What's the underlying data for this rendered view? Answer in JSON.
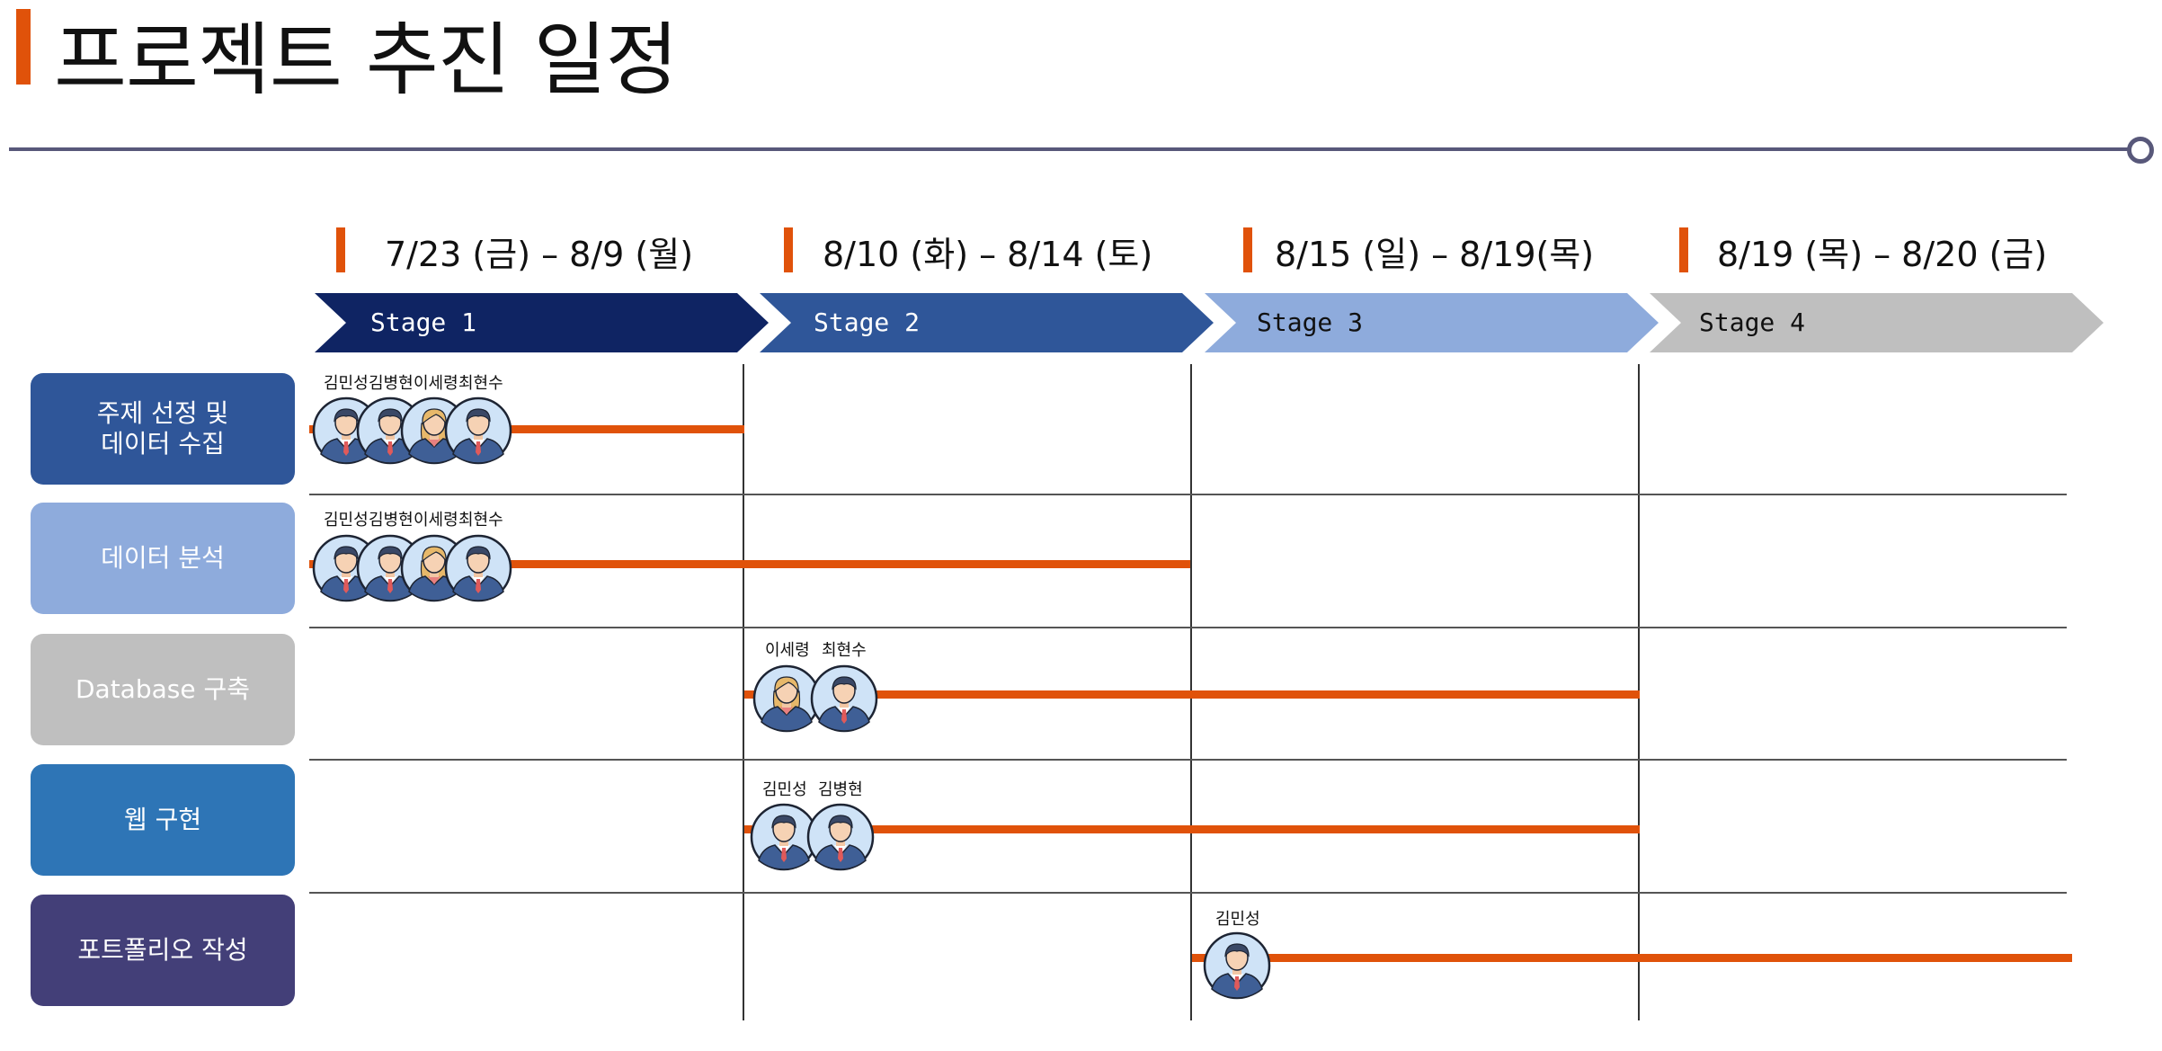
{
  "title": "프로젝트 추진 일정",
  "colors": {
    "accent": "#e0520a",
    "rule": "#58587a",
    "stage1": "#0f2463",
    "stage2": "#2f5699",
    "stage3": "#8eabdc",
    "stage4": "#bfbfbf"
  },
  "periods": [
    {
      "date": "7/23 (금) – 8/9 (월)",
      "stage": "Stage 1"
    },
    {
      "date": "8/10 (화) – 8/14 (토)",
      "stage": "Stage 2"
    },
    {
      "date": "8/15 (일) – 8/19(목)",
      "stage": "Stage 3"
    },
    {
      "date": "8/19 (목) – 8/20 (금)",
      "stage": "Stage 4"
    }
  ],
  "tasks": [
    {
      "label": "주제 선정 및\n데이터 수집",
      "color": "#2f5699",
      "start_stage": 1,
      "end_stage": 1,
      "members": [
        "김민성",
        "김병현",
        "이세령",
        "최현수"
      ]
    },
    {
      "label": "데이터 분석",
      "color": "#8eabdc",
      "start_stage": 1,
      "end_stage": 2,
      "members": [
        "김민성",
        "김병현",
        "이세령",
        "최현수"
      ]
    },
    {
      "label": "Database 구축",
      "color": "#bfbfbf",
      "start_stage": 2,
      "end_stage": 3,
      "members": [
        "이세령",
        "최현수"
      ]
    },
    {
      "label": "웹 구현",
      "color": "#2e75b6",
      "start_stage": 2,
      "end_stage": 3,
      "members": [
        "김민성",
        "김병현"
      ]
    },
    {
      "label": "포트폴리오 작성",
      "color": "#433f78",
      "start_stage": 3,
      "end_stage": 4,
      "members": [
        "김민성"
      ]
    }
  ],
  "member_gender": {
    "김민성": "male",
    "김병현": "male",
    "이세령": "female",
    "최현수": "male"
  }
}
